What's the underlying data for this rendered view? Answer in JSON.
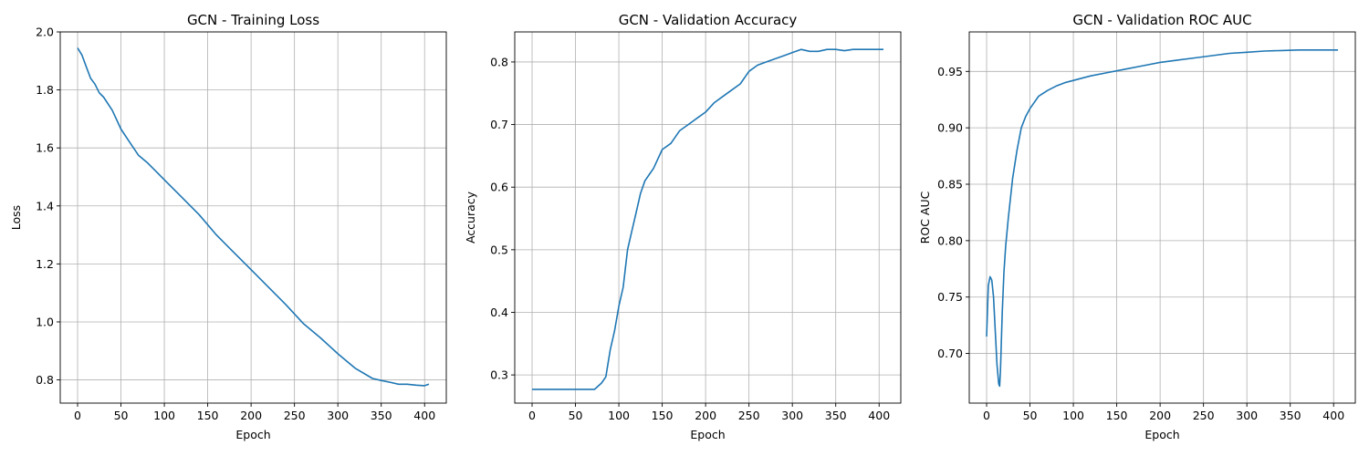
{
  "chart_data": [
    {
      "type": "line",
      "title": "GCN - Training Loss",
      "xlabel": "Epoch",
      "ylabel": "Loss",
      "xlim": [
        -20,
        425
      ],
      "ylim": [
        0.72,
        2.0
      ],
      "xticks": [
        0,
        50,
        100,
        150,
        200,
        250,
        300,
        350,
        400
      ],
      "yticks": [
        0.8,
        1.0,
        1.2,
        1.4,
        1.6,
        1.8,
        2.0
      ],
      "ytick_decimals": 1,
      "grid": true,
      "color": "#1f77b4",
      "series": [
        {
          "x": [
            0,
            5,
            10,
            15,
            20,
            25,
            30,
            40,
            50,
            60,
            70,
            80,
            90,
            100,
            120,
            140,
            160,
            180,
            200,
            220,
            240,
            260,
            280,
            300,
            320,
            340,
            350,
            360,
            370,
            380,
            390,
            400,
            405
          ],
          "y": [
            1.945,
            1.92,
            1.88,
            1.84,
            1.82,
            1.79,
            1.775,
            1.73,
            1.665,
            1.62,
            1.575,
            1.55,
            1.52,
            1.49,
            1.43,
            1.37,
            1.3,
            1.24,
            1.18,
            1.12,
            1.06,
            0.995,
            0.945,
            0.89,
            0.84,
            0.805,
            0.798,
            0.792,
            0.785,
            0.785,
            0.782,
            0.78,
            0.785
          ]
        }
      ]
    },
    {
      "type": "line",
      "title": "GCN - Validation Accuracy",
      "xlabel": "Epoch",
      "ylabel": "Accuracy",
      "xlim": [
        -20,
        425
      ],
      "ylim": [
        0.255,
        0.848
      ],
      "xticks": [
        0,
        50,
        100,
        150,
        200,
        250,
        300,
        350,
        400
      ],
      "yticks": [
        0.3,
        0.4,
        0.5,
        0.6,
        0.7,
        0.8
      ],
      "ytick_decimals": 1,
      "grid": true,
      "color": "#1f77b4",
      "series": [
        {
          "x": [
            0,
            20,
            40,
            60,
            72,
            80,
            85,
            90,
            95,
            100,
            105,
            110,
            115,
            120,
            125,
            130,
            135,
            140,
            145,
            150,
            160,
            170,
            180,
            190,
            200,
            210,
            220,
            230,
            240,
            250,
            260,
            270,
            280,
            290,
            300,
            310,
            320,
            330,
            340,
            350,
            360,
            370,
            380,
            390,
            405
          ],
          "y": [
            0.277,
            0.277,
            0.277,
            0.277,
            0.277,
            0.287,
            0.297,
            0.34,
            0.37,
            0.41,
            0.44,
            0.5,
            0.53,
            0.56,
            0.59,
            0.61,
            0.62,
            0.63,
            0.645,
            0.66,
            0.67,
            0.69,
            0.7,
            0.71,
            0.72,
            0.735,
            0.745,
            0.755,
            0.765,
            0.785,
            0.795,
            0.8,
            0.805,
            0.81,
            0.815,
            0.82,
            0.817,
            0.817,
            0.82,
            0.82,
            0.818,
            0.82,
            0.82,
            0.82,
            0.82
          ]
        }
      ]
    },
    {
      "type": "line",
      "title": "GCN - Validation ROC AUC",
      "xlabel": "Epoch",
      "ylabel": "ROC AUC",
      "xlim": [
        -20,
        425
      ],
      "ylim": [
        0.656,
        0.985
      ],
      "xticks": [
        0,
        50,
        100,
        150,
        200,
        250,
        300,
        350,
        400
      ],
      "yticks": [
        0.7,
        0.75,
        0.8,
        0.85,
        0.9,
        0.95
      ],
      "ytick_decimals": 2,
      "grid": true,
      "color": "#1f77b4",
      "series": [
        {
          "x": [
            0,
            2,
            4,
            6,
            8,
            10,
            12,
            14,
            15,
            16,
            18,
            20,
            22,
            25,
            30,
            35,
            40,
            45,
            50,
            60,
            70,
            80,
            90,
            100,
            120,
            140,
            160,
            180,
            200,
            220,
            240,
            260,
            280,
            300,
            320,
            340,
            360,
            380,
            405
          ],
          "y": [
            0.715,
            0.76,
            0.768,
            0.765,
            0.75,
            0.72,
            0.69,
            0.673,
            0.671,
            0.685,
            0.735,
            0.772,
            0.795,
            0.82,
            0.855,
            0.88,
            0.9,
            0.91,
            0.917,
            0.928,
            0.933,
            0.937,
            0.94,
            0.942,
            0.946,
            0.949,
            0.952,
            0.955,
            0.958,
            0.96,
            0.962,
            0.964,
            0.966,
            0.967,
            0.968,
            0.9685,
            0.969,
            0.969,
            0.969
          ]
        }
      ]
    }
  ]
}
